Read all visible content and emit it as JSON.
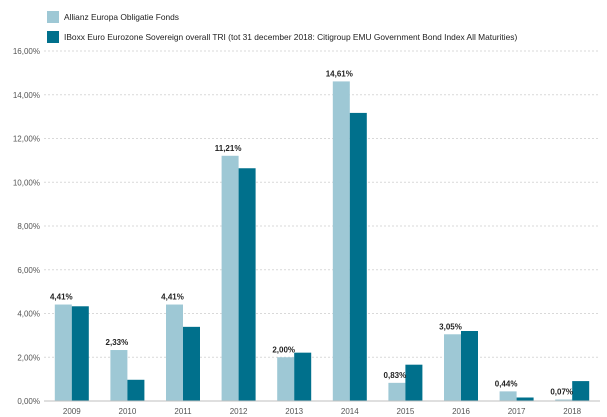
{
  "chart_data": {
    "type": "bar",
    "categories": [
      "2009",
      "2010",
      "2011",
      "2012",
      "2013",
      "2014",
      "2015",
      "2016",
      "2017",
      "2018"
    ],
    "series": [
      {
        "name": "Allianz Europa Obligatie Fonds",
        "color": "#9ec8d5",
        "values": [
          4.41,
          2.33,
          4.41,
          11.21,
          2.0,
          14.61,
          0.83,
          3.05,
          0.44,
          0.07
        ],
        "labels": [
          "4,41%",
          "2,33%",
          "4,41%",
          "11,21%",
          "2,00%",
          "14,61%",
          "0,83%",
          "3,05%",
          "0,44%",
          "0,07%"
        ]
      },
      {
        "name": "IBoxx Euro Eurozone Sovereign overall TRI (tot 31 december 2018: Citigroup EMU Government Bond Index All Maturities)",
        "color": "#00708c",
        "values": [
          4.33,
          0.97,
          3.39,
          10.64,
          2.21,
          13.17,
          1.66,
          3.2,
          0.16,
          0.91
        ]
      }
    ],
    "yticks": [
      0,
      2,
      4,
      6,
      8,
      10,
      12,
      14,
      16
    ],
    "ytick_labels": [
      "0,00%",
      "2,00%",
      "4,00%",
      "6,00%",
      "8,00%",
      "10,00%",
      "12,00%",
      "14,00%",
      "16,00%"
    ],
    "ylim": [
      0,
      16
    ],
    "grid": true,
    "legend": "top-left"
  }
}
